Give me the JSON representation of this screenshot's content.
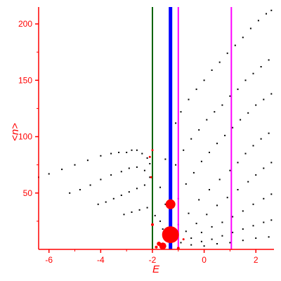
{
  "chart_data": {
    "type": "scatter",
    "title": "",
    "xlabel": "E",
    "ylabel": "<n>",
    "xlim": [
      -6.4,
      2.7
    ],
    "ylim": [
      0,
      215
    ],
    "xticks": [
      -6,
      -4,
      -2,
      0,
      2
    ],
    "yticks": [
      50,
      100,
      150,
      200
    ],
    "xtick_labels": [
      "-6",
      "-4",
      "-2",
      "0",
      "2"
    ],
    "ytick_labels": [
      "50",
      "100",
      "150",
      "200"
    ],
    "grid": false,
    "colors": {
      "axis": "#ff0000",
      "points": "#000000",
      "highlight": "#ff0000",
      "green_line": "#006400",
      "blue_line": "#0000ff",
      "magenta_line": "#ff00ff"
    },
    "vertical_lines": [
      {
        "x": -2.0,
        "color": "#006400",
        "width": 2
      },
      {
        "x": -1.3,
        "color": "#0000ff",
        "width": 5
      },
      {
        "x": -1.0,
        "color": "#ff00ff",
        "width": 2
      },
      {
        "x": 1.05,
        "color": "#ff00ff",
        "width": 2
      }
    ],
    "series": [
      {
        "points": [
          [
            -6.4,
            64
          ],
          [
            -6.0,
            67
          ],
          [
            -5.5,
            71
          ],
          [
            -5.0,
            75
          ],
          [
            -4.5,
            79
          ],
          [
            -4.0,
            83
          ],
          [
            -3.6,
            85
          ],
          [
            -3.3,
            86
          ],
          [
            -3.0,
            86
          ],
          [
            -2.8,
            88
          ],
          [
            -2.6,
            88
          ],
          [
            -2.4,
            85
          ],
          [
            -2.2,
            81
          ],
          [
            -2.1,
            76
          ]
        ]
      },
      {
        "points": [
          [
            -5.2,
            50
          ],
          [
            -4.8,
            53
          ],
          [
            -4.4,
            57
          ],
          [
            -4.0,
            62
          ],
          [
            -3.6,
            66
          ],
          [
            -3.2,
            69
          ],
          [
            -2.9,
            72
          ],
          [
            -2.6,
            73
          ],
          [
            -2.3,
            70
          ],
          [
            -2.1,
            64
          ]
        ]
      },
      {
        "points": [
          [
            -4.1,
            40
          ],
          [
            -3.8,
            42
          ],
          [
            -3.5,
            45
          ],
          [
            -3.2,
            48
          ],
          [
            -2.9,
            51
          ],
          [
            -2.6,
            54
          ],
          [
            -2.3,
            57
          ],
          [
            -2.0,
            59
          ]
        ]
      },
      {
        "points": [
          [
            -3.1,
            31
          ],
          [
            -2.8,
            33
          ],
          [
            -2.5,
            35
          ],
          [
            -2.2,
            37
          ],
          [
            -2.0,
            38
          ]
        ]
      },
      {
        "points": [
          [
            -1.9,
            30
          ],
          [
            -1.7,
            55
          ],
          [
            -1.5,
            80
          ],
          [
            -1.3,
            100
          ],
          [
            -1.1,
            112
          ],
          [
            -0.9,
            122
          ],
          [
            -0.6,
            133
          ],
          [
            -0.3,
            142
          ],
          [
            0.0,
            150
          ],
          [
            0.3,
            159
          ],
          [
            0.6,
            166
          ],
          [
            0.9,
            174
          ],
          [
            1.2,
            181
          ],
          [
            1.5,
            188
          ],
          [
            1.8,
            196
          ],
          [
            2.1,
            203
          ],
          [
            2.4,
            209
          ],
          [
            2.6,
            212
          ]
        ]
      },
      {
        "points": [
          [
            -1.7,
            25
          ],
          [
            -1.5,
            40
          ],
          [
            -1.3,
            60
          ],
          [
            -1.1,
            75
          ],
          [
            -0.8,
            88
          ],
          [
            -0.5,
            98
          ],
          [
            -0.2,
            106
          ],
          [
            0.1,
            115
          ],
          [
            0.4,
            122
          ],
          [
            0.7,
            128
          ],
          [
            1.0,
            136
          ],
          [
            1.3,
            142
          ],
          [
            1.6,
            150
          ],
          [
            1.9,
            156
          ],
          [
            2.2,
            162
          ],
          [
            2.5,
            168
          ]
        ]
      },
      {
        "points": [
          [
            -1.6,
            18
          ],
          [
            -1.3,
            28
          ],
          [
            -1.0,
            45
          ],
          [
            -0.7,
            58
          ],
          [
            -0.4,
            68
          ],
          [
            -0.1,
            78
          ],
          [
            0.2,
            86
          ],
          [
            0.5,
            94
          ],
          [
            0.8,
            101
          ],
          [
            1.1,
            108
          ],
          [
            1.4,
            115
          ],
          [
            1.7,
            121
          ],
          [
            2.0,
            128
          ],
          [
            2.3,
            133
          ],
          [
            2.6,
            138
          ]
        ]
      },
      {
        "points": [
          [
            -1.4,
            15
          ],
          [
            -1.0,
            22
          ],
          [
            -0.6,
            32
          ],
          [
            -0.2,
            44
          ],
          [
            0.2,
            53
          ],
          [
            0.6,
            62
          ],
          [
            1.0,
            70
          ],
          [
            1.3,
            77
          ],
          [
            1.6,
            85
          ],
          [
            1.9,
            92
          ],
          [
            2.2,
            98
          ],
          [
            2.5,
            103
          ]
        ]
      },
      {
        "points": [
          [
            -1.1,
            10
          ],
          [
            -0.7,
            16
          ],
          [
            -0.3,
            23
          ],
          [
            0.1,
            31
          ],
          [
            0.5,
            39
          ],
          [
            0.9,
            46
          ],
          [
            1.3,
            53
          ],
          [
            1.7,
            60
          ],
          [
            2.0,
            66
          ],
          [
            2.3,
            72
          ],
          [
            2.6,
            77
          ]
        ]
      },
      {
        "points": [
          [
            -0.9,
            6
          ],
          [
            -0.5,
            10
          ],
          [
            -0.1,
            15
          ],
          [
            0.3,
            20
          ],
          [
            0.7,
            24
          ],
          [
            1.1,
            29
          ],
          [
            1.5,
            34
          ],
          [
            1.9,
            40
          ],
          [
            2.3,
            45
          ],
          [
            2.6,
            49
          ]
        ]
      },
      {
        "points": [
          [
            -0.5,
            4
          ],
          [
            -0.1,
            7
          ],
          [
            0.3,
            9
          ],
          [
            0.7,
            12
          ],
          [
            1.1,
            15
          ],
          [
            1.5,
            18
          ],
          [
            1.9,
            21
          ],
          [
            2.3,
            24
          ],
          [
            2.6,
            26
          ]
        ]
      },
      {
        "points": [
          [
            0.0,
            3
          ],
          [
            0.5,
            5
          ],
          [
            1.0,
            6
          ],
          [
            1.5,
            8
          ],
          [
            2.0,
            10
          ],
          [
            2.5,
            11
          ]
        ]
      }
    ],
    "highlight_markers": [
      {
        "x": -1.3,
        "y": 13,
        "size": 12
      },
      {
        "x": -1.3,
        "y": 40,
        "size": 7
      },
      {
        "x": -1.6,
        "y": 3,
        "size": 5
      },
      {
        "x": -1.75,
        "y": 5,
        "size": 3
      },
      {
        "x": -1.0,
        "y": 1,
        "size": 2
      },
      {
        "x": -2.0,
        "y": 88,
        "size": 1.5
      },
      {
        "x": -2.1,
        "y": 82,
        "size": 1.5
      },
      {
        "x": -2.05,
        "y": 64,
        "size": 1.5
      },
      {
        "x": -2.0,
        "y": 22,
        "size": 2
      },
      {
        "x": -0.8,
        "y": 9,
        "size": 1.5
      },
      {
        "x": -1.85,
        "y": 2,
        "size": 2
      }
    ]
  }
}
